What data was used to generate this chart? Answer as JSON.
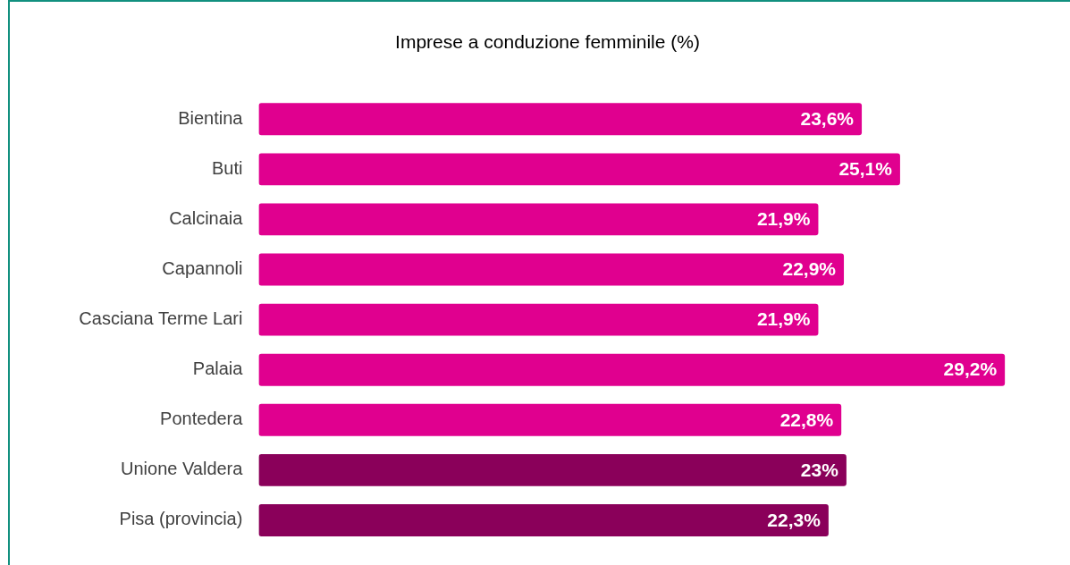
{
  "chart_data": {
    "type": "bar",
    "orientation": "horizontal",
    "title": "Imprese a conduzione femminile (%)",
    "categories": [
      "Bientina",
      "Buti",
      "Calcinaia",
      "Capannoli",
      "Casciana Terme Lari",
      "Palaia",
      "Pontedera",
      "Unione Valdera",
      "Pisa (provincia)"
    ],
    "values": [
      23.6,
      25.1,
      21.9,
      22.9,
      21.9,
      29.2,
      22.8,
      23,
      22.3
    ],
    "colors": [
      "#e0008f",
      "#e0008f",
      "#e0008f",
      "#e0008f",
      "#e0008f",
      "#e0008f",
      "#e0008f",
      "#8a005a",
      "#8a005a"
    ],
    "value_labels": [
      "23,6%",
      "25,1%",
      "21,9%",
      "22,9%",
      "21,9%",
      "29,2%",
      "22,8%",
      "23%",
      "22,3%"
    ],
    "legend": false
  }
}
